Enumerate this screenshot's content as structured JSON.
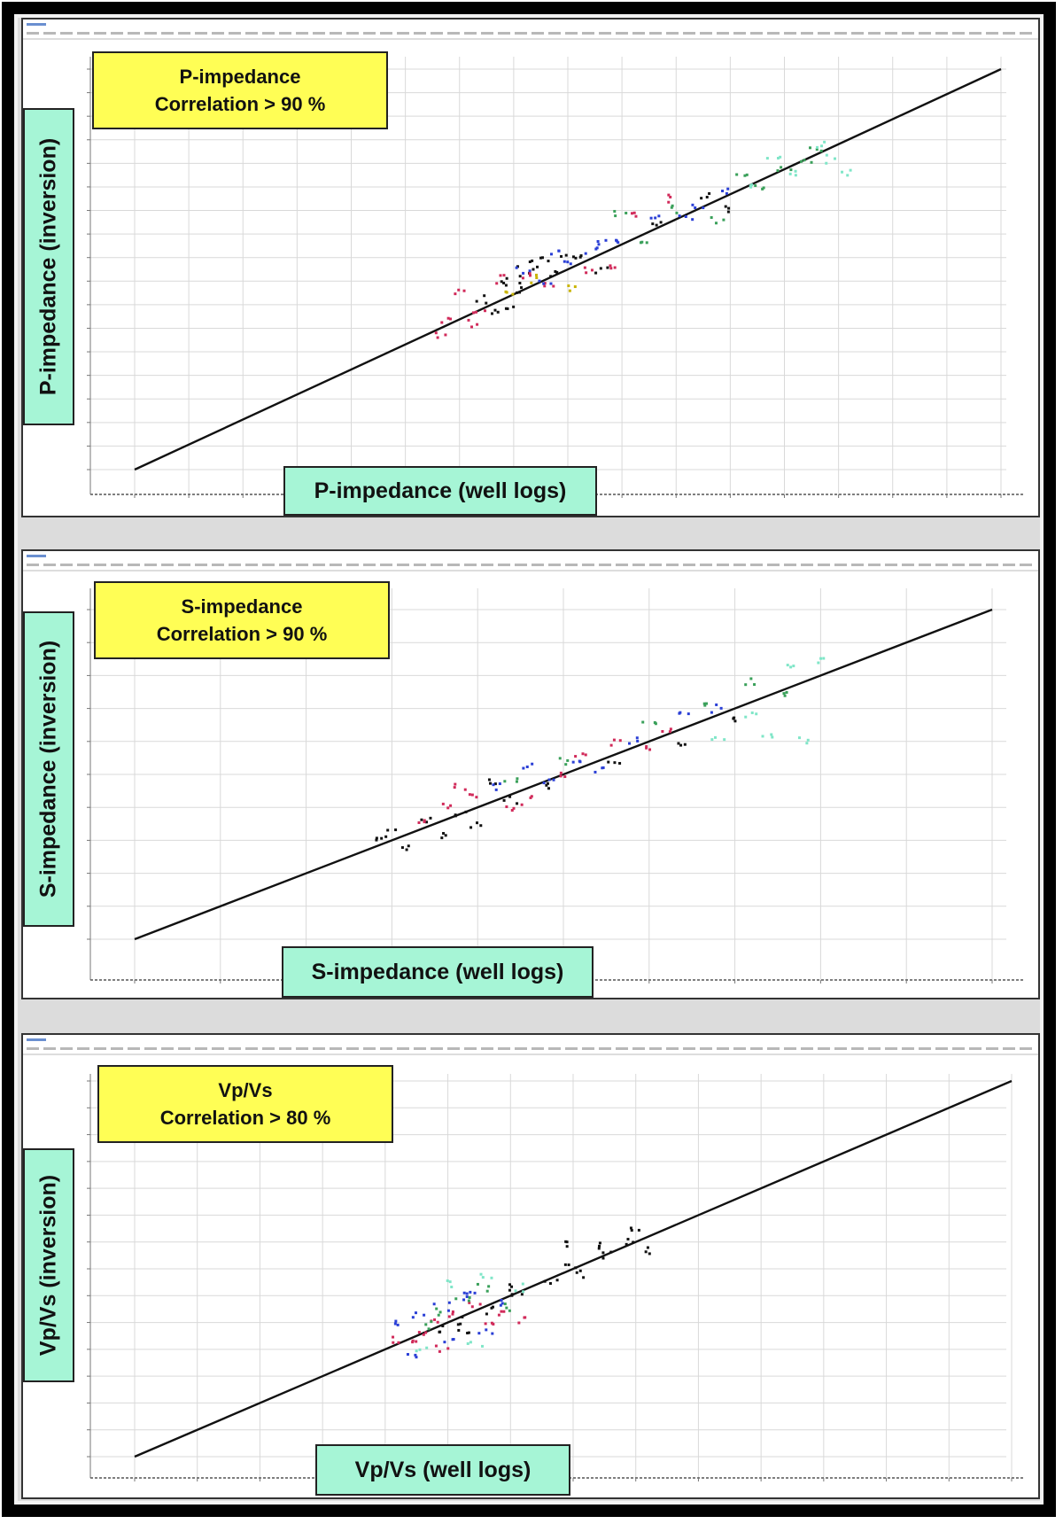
{
  "chart_data": [
    {
      "type": "scatter",
      "title": [
        "P-impedance",
        "Correlation > 90 %"
      ],
      "xlabel": "P-impedance (well logs)",
      "ylabel": "P-impedance (inversion)",
      "xlim": [
        7,
        15
      ],
      "ylim": [
        7,
        15
      ],
      "grid": true,
      "trend_line": {
        "x": [
          7,
          15
        ],
        "y": [
          7,
          15
        ]
      },
      "series": [
        {
          "color": "#111111",
          "points": [
            [
              10.5,
              10.8
            ],
            [
              10.7,
              11.0
            ],
            [
              10.9,
              10.9
            ],
            [
              10.6,
              10.6
            ],
            [
              10.4,
              10.7
            ],
            [
              11.0,
              11.2
            ],
            [
              11.8,
              11.9
            ],
            [
              12.5,
              12.2
            ],
            [
              10.2,
              10.4
            ],
            [
              10.3,
              10.2
            ],
            [
              10.8,
              11.2
            ],
            [
              11.3,
              11.0
            ],
            [
              12.3,
              12.5
            ],
            [
              10.6,
              11.1
            ],
            [
              11.1,
              11.3
            ],
            [
              10.5,
              10.3
            ]
          ]
        },
        {
          "color": "#d12a5a",
          "points": [
            [
              10.0,
              10.5
            ],
            [
              10.2,
              10.1
            ],
            [
              10.4,
              10.8
            ],
            [
              10.8,
              10.7
            ],
            [
              11.2,
              11.0
            ],
            [
              12.0,
              12.4
            ],
            [
              9.8,
              9.7
            ],
            [
              9.9,
              10.0
            ],
            [
              10.6,
              10.9
            ],
            [
              11.4,
              11.1
            ],
            [
              10.1,
              9.9
            ],
            [
              11.6,
              12.1
            ]
          ]
        },
        {
          "color": "#2a3fd6",
          "points": [
            [
              10.6,
              11.0
            ],
            [
              10.9,
              11.3
            ],
            [
              11.2,
              11.4
            ],
            [
              11.5,
              11.6
            ],
            [
              11.8,
              12.0
            ],
            [
              12.1,
              12.0
            ],
            [
              12.5,
              12.6
            ],
            [
              11.3,
              11.5
            ],
            [
              10.8,
              10.8
            ],
            [
              11.0,
              11.1
            ],
            [
              12.2,
              12.3
            ]
          ]
        },
        {
          "color": "#3aa05a",
          "points": [
            [
              11.5,
              12.1
            ],
            [
              12.0,
              12.2
            ],
            [
              12.6,
              12.9
            ],
            [
              13.0,
              13.0
            ],
            [
              13.3,
              13.4
            ],
            [
              12.8,
              12.6
            ],
            [
              11.7,
              11.6
            ],
            [
              13.2,
              13.1
            ],
            [
              12.4,
              12.0
            ]
          ]
        },
        {
          "color": "#80e6c8",
          "points": [
            [
              12.7,
              12.6
            ],
            [
              13.1,
              12.9
            ],
            [
              13.4,
              13.2
            ],
            [
              13.6,
              12.9
            ],
            [
              12.9,
              13.3
            ],
            [
              13.3,
              13.5
            ]
          ]
        },
        {
          "color": "#c9b400",
          "points": [
            [
              10.7,
              10.8
            ],
            [
              11.0,
              10.6
            ],
            [
              10.5,
              10.5
            ]
          ]
        }
      ]
    },
    {
      "type": "scatter",
      "title": [
        "S-impedance",
        "Correlation > 90 %"
      ],
      "xlabel": "S-impedance (well logs)",
      "ylabel": "S-impedance (inversion)",
      "xlim": [
        4,
        9
      ],
      "ylim": [
        4,
        9
      ],
      "grid": true,
      "trend_line": {
        "x": [
          4,
          9
        ],
        "y": [
          4,
          9
        ]
      },
      "series": [
        {
          "color": "#111111",
          "points": [
            [
              5.5,
              5.6
            ],
            [
              5.7,
              5.8
            ],
            [
              5.9,
              5.9
            ],
            [
              6.0,
              5.7
            ],
            [
              5.8,
              5.6
            ],
            [
              6.2,
              6.1
            ],
            [
              7.2,
              7.0
            ],
            [
              7.5,
              7.3
            ],
            [
              5.6,
              5.4
            ],
            [
              6.4,
              6.3
            ],
            [
              6.1,
              6.4
            ],
            [
              6.8,
              6.7
            ],
            [
              5.4,
              5.5
            ]
          ]
        },
        {
          "color": "#d12a5a",
          "points": [
            [
              5.8,
              6.0
            ],
            [
              6.0,
              6.2
            ],
            [
              6.2,
              6.0
            ],
            [
              6.5,
              6.5
            ],
            [
              6.8,
              7.0
            ],
            [
              7.0,
              6.9
            ],
            [
              5.9,
              6.3
            ],
            [
              6.3,
              6.1
            ],
            [
              5.7,
              5.8
            ],
            [
              6.6,
              6.8
            ],
            [
              7.1,
              7.2
            ]
          ]
        },
        {
          "color": "#2a3fd6",
          "points": [
            [
              6.3,
              6.6
            ],
            [
              6.6,
              6.7
            ],
            [
              6.9,
              7.0
            ],
            [
              7.2,
              7.4
            ],
            [
              6.4,
              6.4
            ],
            [
              6.7,
              6.6
            ],
            [
              7.4,
              7.5
            ],
            [
              6.1,
              6.3
            ]
          ]
        },
        {
          "color": "#3aa05a",
          "points": [
            [
              6.5,
              6.7
            ],
            [
              7.0,
              7.3
            ],
            [
              7.3,
              7.6
            ],
            [
              7.6,
              7.9
            ],
            [
              7.8,
              7.7
            ],
            [
              6.2,
              6.4
            ]
          ]
        },
        {
          "color": "#80e6c8",
          "points": [
            [
              7.4,
              7.0
            ],
            [
              7.7,
              7.1
            ],
            [
              7.9,
              7.0
            ],
            [
              7.6,
              7.4
            ],
            [
              7.8,
              8.1
            ],
            [
              8.0,
              8.2
            ]
          ]
        }
      ]
    },
    {
      "type": "scatter",
      "title": [
        "Vp/Vs",
        "Correlation > 80 %"
      ],
      "xlabel": "Vp/Vs (well logs)",
      "ylabel": "Vp/Vs (inversion)",
      "xlim": [
        1.6,
        2.4
      ],
      "ylim": [
        1.6,
        2.4
      ],
      "grid": true,
      "trend_line": {
        "x": [
          1.6,
          2.4
        ],
        "y": [
          1.6,
          2.4
        ]
      },
      "series": [
        {
          "color": "#111111",
          "points": [
            [
              1.88,
              1.87
            ],
            [
              1.9,
              1.89
            ],
            [
              1.92,
              1.91
            ],
            [
              1.95,
              1.94
            ],
            [
              1.98,
              1.97
            ],
            [
              2.0,
              2.01
            ],
            [
              2.02,
              2.05
            ],
            [
              2.05,
              2.06
            ],
            [
              2.07,
              2.04
            ],
            [
              2.03,
              2.03
            ],
            [
              2.01,
              1.99
            ],
            [
              1.94,
              1.96
            ],
            [
              1.99,
              2.05
            ],
            [
              2.06,
              2.08
            ],
            [
              1.9,
              1.86
            ]
          ]
        },
        {
          "color": "#d12a5a",
          "points": [
            [
              1.84,
              1.85
            ],
            [
              1.86,
              1.86
            ],
            [
              1.87,
              1.89
            ],
            [
              1.89,
              1.9
            ],
            [
              1.91,
              1.92
            ],
            [
              1.93,
              1.9
            ],
            [
              1.85,
              1.84
            ],
            [
              1.88,
              1.83
            ],
            [
              1.92,
              1.88
            ],
            [
              1.95,
              1.89
            ]
          ]
        },
        {
          "color": "#2a3fd6",
          "points": [
            [
              1.84,
              1.88
            ],
            [
              1.86,
              1.9
            ],
            [
              1.88,
              1.92
            ],
            [
              1.9,
              1.94
            ],
            [
              1.92,
              1.87
            ],
            [
              1.85,
              1.82
            ],
            [
              1.89,
              1.85
            ],
            [
              1.91,
              1.95
            ],
            [
              1.93,
              1.93
            ]
          ]
        },
        {
          "color": "#3aa05a",
          "points": [
            [
              1.87,
              1.88
            ],
            [
              1.9,
              1.93
            ],
            [
              1.92,
              1.96
            ],
            [
              1.88,
              1.91
            ],
            [
              1.94,
              1.92
            ]
          ]
        },
        {
          "color": "#80e6c8",
          "points": [
            [
              1.89,
              1.97
            ],
            [
              1.92,
              1.98
            ],
            [
              1.95,
              1.96
            ],
            [
              1.91,
              1.84
            ],
            [
              1.86,
              1.83
            ]
          ]
        }
      ]
    }
  ]
}
